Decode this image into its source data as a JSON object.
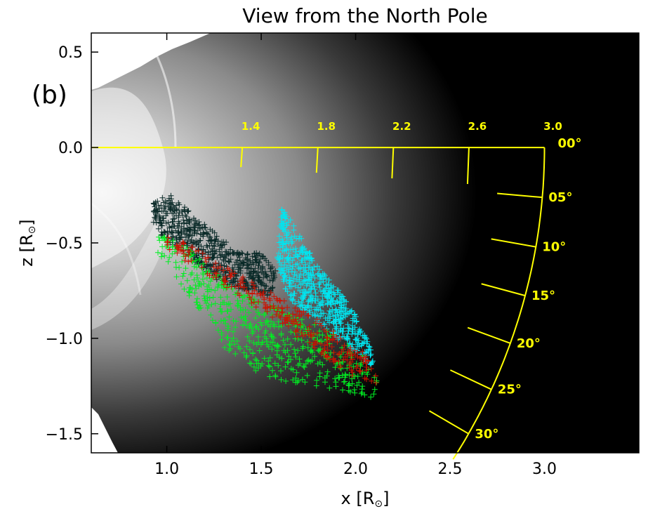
{
  "chart_data": {
    "type": "scatter",
    "title": "View from the North Pole",
    "panel_label": "(b)",
    "xlabel": "x [R",
    "ylabel": "z [R",
    "xlabel_suffix": "]",
    "ylabel_suffix": "]",
    "sun_symbol": "⊙",
    "xlim": [
      0.6,
      3.5
    ],
    "ylim": [
      -1.6,
      0.6
    ],
    "x_ticks": [
      {
        "value": 1.0,
        "label": "1.0"
      },
      {
        "value": 1.5,
        "label": "1.5"
      },
      {
        "value": 2.0,
        "label": "2.0"
      },
      {
        "value": 2.5,
        "label": "2.5"
      },
      {
        "value": 3.0,
        "label": "3.0"
      }
    ],
    "y_ticks": [
      {
        "value": 0.5,
        "label": "0.5"
      },
      {
        "value": 0.0,
        "label": "0.0"
      },
      {
        "value": -0.5,
        "label": "−0.5"
      },
      {
        "value": -1.0,
        "label": "−1.0"
      },
      {
        "value": -1.5,
        "label": "−1.5"
      }
    ],
    "radial_scale": {
      "ticks": [
        {
          "value": 1.4,
          "label": "1.4"
        },
        {
          "value": 1.8,
          "label": "1.8"
        },
        {
          "value": 2.2,
          "label": "2.2"
        },
        {
          "value": 2.6,
          "label": "2.6"
        },
        {
          "value": 3.0,
          "label": "3.0"
        }
      ]
    },
    "angle_scale": {
      "radius": 3.0,
      "ticks": [
        {
          "value": 0,
          "label": "00°"
        },
        {
          "value": 5,
          "label": "05°"
        },
        {
          "value": 10,
          "label": "10°"
        },
        {
          "value": 15,
          "label": "15°"
        },
        {
          "value": 20,
          "label": "20°"
        },
        {
          "value": 25,
          "label": "25°"
        },
        {
          "value": 30,
          "label": "30°"
        }
      ]
    },
    "colors": {
      "yellow": "#ffff00",
      "cyan": "#00e5f0",
      "green": "#00ee22",
      "red": "#cc1100",
      "dark": "#0a2a28"
    },
    "series": [
      {
        "color": "#0a2a28",
        "polygon": [
          [
            0.93,
            -0.27
          ],
          [
            1.02,
            -0.25
          ],
          [
            1.2,
            -0.4
          ],
          [
            1.38,
            -0.55
          ],
          [
            1.5,
            -0.55
          ],
          [
            1.58,
            -0.65
          ],
          [
            1.55,
            -0.78
          ],
          [
            1.3,
            -0.72
          ],
          [
            1.08,
            -0.55
          ],
          [
            0.93,
            -0.43
          ]
        ]
      },
      {
        "color": "#00e5f0",
        "polygon": [
          [
            1.58,
            -0.62
          ],
          [
            1.61,
            -0.3
          ],
          [
            1.68,
            -0.42
          ],
          [
            1.8,
            -0.62
          ],
          [
            1.92,
            -0.75
          ],
          [
            2.0,
            -0.88
          ],
          [
            2.06,
            -1.0
          ],
          [
            2.1,
            -1.12
          ],
          [
            2.1,
            -1.16
          ],
          [
            1.9,
            -1.0
          ],
          [
            1.65,
            -0.8
          ]
        ]
      },
      {
        "color": "#00ee22",
        "polygon": [
          [
            0.93,
            -0.44
          ],
          [
            1.1,
            -0.52
          ],
          [
            1.35,
            -0.72
          ],
          [
            1.6,
            -0.85
          ],
          [
            1.85,
            -0.95
          ],
          [
            2.05,
            -1.1
          ],
          [
            2.12,
            -1.22
          ],
          [
            2.12,
            -1.32
          ],
          [
            2.0,
            -1.3
          ],
          [
            1.8,
            -1.25
          ],
          [
            1.55,
            -1.22
          ],
          [
            1.35,
            -1.1
          ],
          [
            1.2,
            -0.92
          ],
          [
            1.05,
            -0.68
          ],
          [
            0.95,
            -0.55
          ]
        ]
      },
      {
        "color": "#cc1100",
        "polygon": [
          [
            0.95,
            -0.45
          ],
          [
            1.1,
            -0.5
          ],
          [
            1.3,
            -0.62
          ],
          [
            1.55,
            -0.76
          ],
          [
            1.8,
            -0.9
          ],
          [
            2.05,
            -1.08
          ],
          [
            2.12,
            -1.2
          ],
          [
            2.1,
            -1.27
          ],
          [
            1.95,
            -1.18
          ],
          [
            1.7,
            -1.0
          ],
          [
            1.45,
            -0.82
          ],
          [
            1.2,
            -0.66
          ],
          [
            1.0,
            -0.53
          ]
        ]
      }
    ]
  }
}
